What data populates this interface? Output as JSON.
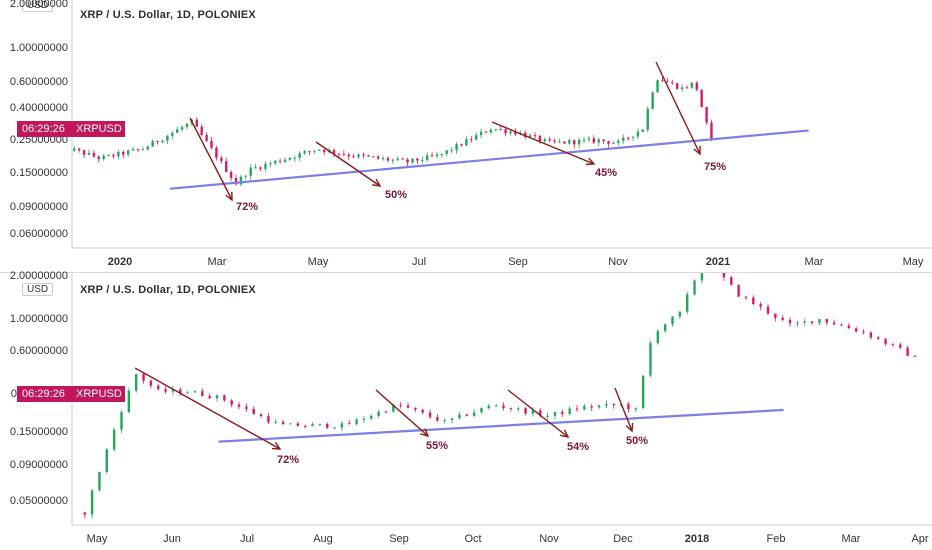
{
  "colors": {
    "up": "#26a65b",
    "down": "#d81b60",
    "trend": "#7b7fe6",
    "arrow": "#8b1a1a",
    "badge": "#c2185b"
  },
  "chart_data": [
    {
      "type": "candlestick",
      "title": "XRP / U.S. Dollar, 1D, POLONIEX",
      "currency": "USD",
      "price_badge": {
        "time": "06:29:26",
        "symbol": "XRPUSD"
      },
      "y_scale": "log",
      "y_ticks": [
        "2.00000000",
        "1.00000000",
        "0.60000000",
        "0.40000000",
        "0.25000000",
        "0.15000000",
        "0.09000000",
        "0.06000000"
      ],
      "x_ticks": [
        {
          "label": "2020",
          "bold": true
        },
        {
          "label": "Mar"
        },
        {
          "label": "May"
        },
        {
          "label": "Jul"
        },
        {
          "label": "Sep"
        },
        {
          "label": "Nov"
        },
        {
          "label": "2021",
          "bold": true
        },
        {
          "label": "Mar"
        },
        {
          "label": "May"
        }
      ],
      "price_path": [
        [
          "2019-11-25",
          0.23
        ],
        [
          "2019-12-20",
          0.19
        ],
        [
          "2020-01-15",
          0.22
        ],
        [
          "2020-02-14",
          0.33
        ],
        [
          "2020-03-12",
          0.13
        ],
        [
          "2020-03-20",
          0.16
        ],
        [
          "2020-05-01",
          0.22
        ],
        [
          "2020-05-20",
          0.2
        ],
        [
          "2020-06-25",
          0.18
        ],
        [
          "2020-07-15",
          0.2
        ],
        [
          "2020-08-15",
          0.3
        ],
        [
          "2020-09-01",
          0.28
        ],
        [
          "2020-09-20",
          0.24
        ],
        [
          "2020-10-20",
          0.25
        ],
        [
          "2020-11-01",
          0.24
        ],
        [
          "2020-11-16",
          0.3
        ],
        [
          "2020-11-24",
          0.65
        ],
        [
          "2020-12-10",
          0.55
        ],
        [
          "2020-12-18",
          0.6
        ],
        [
          "2020-12-29",
          0.22
        ]
      ],
      "trendline": [
        [
          "2020-02-01",
          0.12
        ],
        [
          "2021-02-25",
          0.29
        ]
      ],
      "corrections": [
        {
          "label": "72%"
        },
        {
          "label": "50%"
        },
        {
          "label": "45%"
        },
        {
          "label": "75%"
        }
      ]
    },
    {
      "type": "candlestick",
      "title": "XRP / U.S. Dollar, 1D, POLONIEX",
      "currency": "USD",
      "price_badge": {
        "time": "06:29:26",
        "symbol": "XRPUSD"
      },
      "y_scale": "log",
      "y_ticks": [
        "2.00000000",
        "1.00000000",
        "0.60000000",
        "",
        "0.15000000",
        "0.09000000",
        "0.05000000"
      ],
      "x_ticks": [
        {
          "label": "May"
        },
        {
          "label": "Jun"
        },
        {
          "label": "Jul"
        },
        {
          "label": "Aug"
        },
        {
          "label": "Sep"
        },
        {
          "label": "Oct"
        },
        {
          "label": "Nov"
        },
        {
          "label": "Dec"
        },
        {
          "label": "2018",
          "bold": true
        },
        {
          "label": "Feb"
        },
        {
          "label": "Mar"
        },
        {
          "label": "Apr"
        }
      ],
      "price_path": [
        [
          "2017-04-26",
          0.04
        ],
        [
          "2017-05-10",
          0.2
        ],
        [
          "2017-05-17",
          0.4
        ],
        [
          "2017-05-26",
          0.3
        ],
        [
          "2017-06-07",
          0.3
        ],
        [
          "2017-06-20",
          0.27
        ],
        [
          "2017-07-15",
          0.17
        ],
        [
          "2017-08-10",
          0.17
        ],
        [
          "2017-09-01",
          0.24
        ],
        [
          "2017-09-20",
          0.18
        ],
        [
          "2017-10-10",
          0.24
        ],
        [
          "2017-11-01",
          0.2
        ],
        [
          "2017-11-15",
          0.23
        ],
        [
          "2017-12-01",
          0.24
        ],
        [
          "2017-12-07",
          0.22
        ],
        [
          "2017-12-14",
          0.8
        ],
        [
          "2017-12-25",
          1.1
        ],
        [
          "2018-01-04",
          2.8
        ],
        [
          "2018-01-18",
          1.5
        ],
        [
          "2018-02-08",
          0.9
        ],
        [
          "2018-02-20",
          1.0
        ],
        [
          "2018-03-10",
          0.8
        ],
        [
          "2018-03-25",
          0.6
        ],
        [
          "2018-04-02",
          0.5
        ]
      ],
      "trendline": [
        [
          "2017-06-20",
          0.13
        ],
        [
          "2018-02-05",
          0.22
        ]
      ],
      "corrections": [
        {
          "label": "72%"
        },
        {
          "label": "55%"
        },
        {
          "label": "54%"
        },
        {
          "label": "50%"
        }
      ]
    }
  ]
}
